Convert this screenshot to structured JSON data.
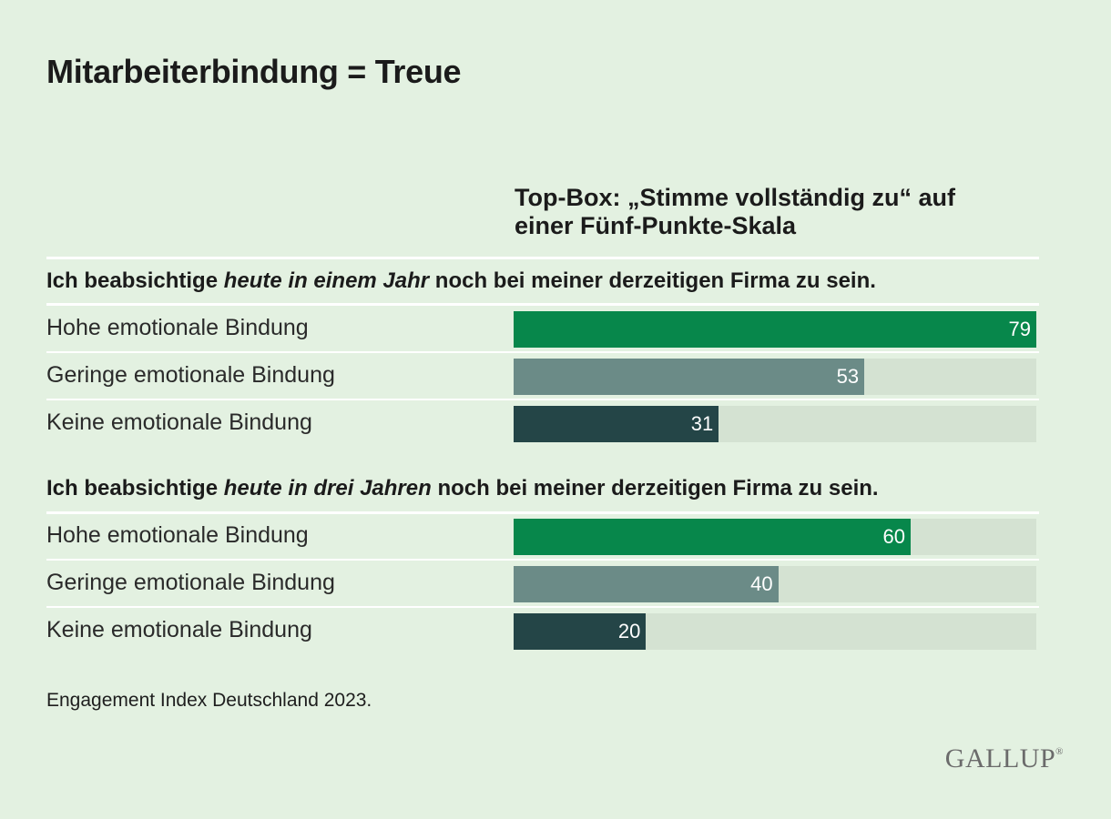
{
  "title": "Mitarbeiterbindung = Treue",
  "subtitle": {
    "line1": "Top-Box: „Stimme vollständig zu“ auf",
    "line2": "einer Fünf-Punkte-Skala"
  },
  "colors": {
    "hoch": "#07874b",
    "gering": "#6b8b87",
    "keine": "#244547",
    "track": "#d4e2d2"
  },
  "chart_data": {
    "type": "bar",
    "orientation": "horizontal",
    "scale_max": 79,
    "groups": [
      {
        "pre": "Ich beabsichtige ",
        "emph": "heute in einem Jahr",
        "post": " noch bei meiner derzeitigen Firma zu sein.",
        "rows": [
          {
            "label": "Hohe emotionale Bindung",
            "value": 79,
            "color_key": "hoch"
          },
          {
            "label": "Geringe emotionale Bindung",
            "value": 53,
            "color_key": "gering"
          },
          {
            "label": "Keine emotionale Bindung",
            "value": 31,
            "color_key": "keine"
          }
        ]
      },
      {
        "pre": "Ich beabsichtige ",
        "emph": "heute in drei Jahren",
        "post": " noch bei meiner derzeitigen Firma zu sein.",
        "rows": [
          {
            "label": "Hohe emotionale Bindung",
            "value": 60,
            "color_key": "hoch"
          },
          {
            "label": "Geringe emotionale Bindung",
            "value": 40,
            "color_key": "gering"
          },
          {
            "label": "Keine emotionale Bindung",
            "value": 20,
            "color_key": "keine"
          }
        ]
      }
    ]
  },
  "note": "Engagement Index Deutschland 2023.",
  "logo": {
    "text": "GALLUP",
    "mark": "®"
  }
}
